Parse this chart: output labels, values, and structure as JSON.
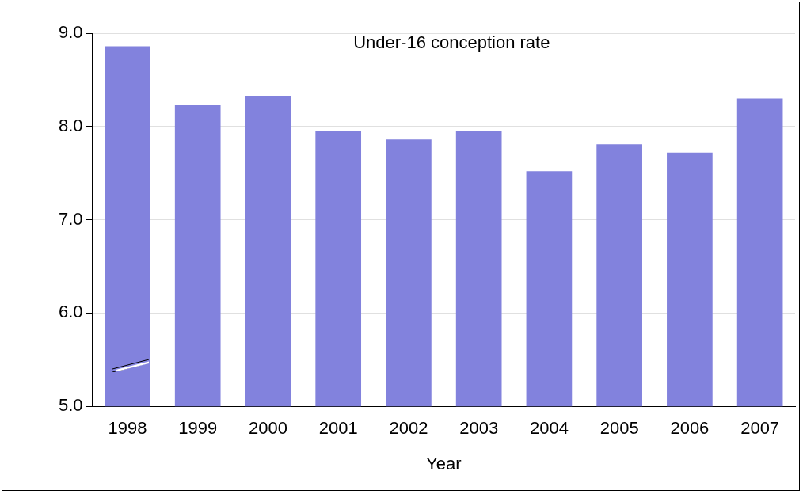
{
  "chart_data": {
    "type": "bar",
    "title": "Under-16 conception rate",
    "xlabel": "Year",
    "categories": [
      "1998",
      "1999",
      "2000",
      "2001",
      "2002",
      "2003",
      "2004",
      "2005",
      "2006",
      "2007"
    ],
    "values": [
      8.86,
      8.23,
      8.33,
      7.95,
      7.86,
      7.95,
      7.52,
      7.81,
      7.72,
      8.3
    ],
    "color": "#8282dd",
    "ylim": [
      5,
      9
    ],
    "yticks": [
      {
        "value": 5,
        "label": "5.0"
      },
      {
        "value": 6,
        "label": "6.0"
      },
      {
        "value": 7,
        "label": "7.0"
      },
      {
        "value": 8,
        "label": "8.0"
      },
      {
        "value": 9,
        "label": "9.0"
      }
    ],
    "grid": "y",
    "legend": false
  }
}
